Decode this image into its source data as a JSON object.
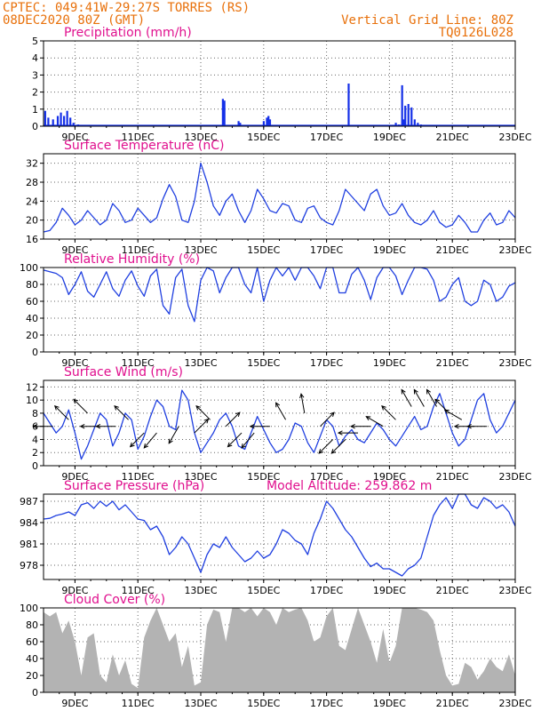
{
  "header": {
    "line1_left": "CPTEC:   049:41W-29:27S  TORRES (RS)",
    "line2_left": "08DEC2020 80Z (GMT)",
    "line1_right": "Vertical Grid Line: 80Z",
    "line2_right": "TQ0126L028"
  },
  "colors": {
    "series": "#1f3fe0",
    "bars": "#1530e8",
    "cloud": "#b3b3b3",
    "title": "#e0108e",
    "header": "#e8700a"
  },
  "x_axis": {
    "ticks": [
      "9DEC",
      "11DEC",
      "13DEC",
      "15DEC",
      "17DEC",
      "19DEC",
      "21DEC",
      "23DEC"
    ],
    "tick_days": [
      9,
      11,
      13,
      15,
      17,
      19,
      21,
      23
    ],
    "range_days": [
      8,
      23
    ]
  },
  "chart_data": [
    {
      "type": "bar",
      "title": "Precipitation (mm/h)",
      "ylim": [
        0,
        5
      ],
      "yticks": [
        "0",
        "1",
        "2",
        "3",
        "4",
        "5"
      ],
      "grid": true,
      "x_days": [
        8.05,
        8.15,
        8.3,
        8.45,
        8.55,
        8.65,
        8.75,
        8.85,
        8.95,
        9.1,
        9.3,
        13.7,
        13.75,
        14.2,
        14.25,
        15.0,
        15.1,
        15.15,
        15.2,
        17.7,
        17.75,
        19.2,
        19.3,
        19.4,
        19.45,
        19.5,
        19.6,
        19.7,
        19.8,
        19.9,
        20.0,
        20.2
      ],
      "values": [
        0.9,
        0.5,
        0.4,
        0.6,
        0.8,
        0.6,
        0.9,
        0.5,
        0.2,
        0.1,
        0.05,
        1.6,
        1.5,
        0.3,
        0.2,
        0.3,
        0.5,
        0.6,
        0.4,
        2.5,
        0.05,
        0.2,
        0.1,
        2.4,
        0.4,
        1.2,
        1.3,
        1.1,
        0.4,
        0.2,
        0.1,
        0.05
      ]
    },
    {
      "type": "line",
      "title": "Surface Temperature (nC)",
      "ylim": [
        16,
        34
      ],
      "yticks": [
        "16",
        "20",
        "24",
        "28",
        "32"
      ],
      "grid": true,
      "x_days": [
        8.0,
        8.2,
        8.4,
        8.6,
        8.8,
        9.0,
        9.2,
        9.4,
        9.6,
        9.8,
        10.0,
        10.2,
        10.4,
        10.6,
        10.8,
        11.0,
        11.2,
        11.4,
        11.6,
        11.8,
        12.0,
        12.2,
        12.4,
        12.6,
        12.8,
        13.0,
        13.2,
        13.4,
        13.6,
        13.8,
        14.0,
        14.2,
        14.4,
        14.6,
        14.8,
        15.0,
        15.2,
        15.4,
        15.6,
        15.8,
        16.0,
        16.2,
        16.4,
        16.6,
        16.8,
        17.0,
        17.2,
        17.4,
        17.6,
        17.8,
        18.0,
        18.2,
        18.4,
        18.6,
        18.8,
        19.0,
        19.2,
        19.4,
        19.6,
        19.8,
        20.0,
        20.2,
        20.4,
        20.6,
        20.8,
        21.0,
        21.2,
        21.4,
        21.6,
        21.8,
        22.0,
        22.2,
        22.4,
        22.6,
        22.8,
        23.0
      ],
      "values": [
        17.5,
        17.8,
        19.5,
        22.5,
        21.0,
        19.0,
        20.0,
        22.0,
        20.5,
        19.0,
        20.0,
        23.5,
        22.0,
        19.5,
        20.0,
        22.5,
        21.0,
        19.5,
        20.5,
        24.5,
        27.5,
        25.0,
        20.0,
        19.5,
        24.0,
        32.0,
        28.0,
        23.0,
        21.0,
        24.0,
        25.5,
        22.0,
        19.5,
        22.0,
        26.5,
        24.5,
        22.0,
        21.5,
        23.5,
        23.0,
        20.0,
        19.5,
        22.5,
        23.0,
        20.5,
        19.5,
        19.0,
        22.0,
        26.5,
        25.0,
        23.5,
        22.0,
        25.5,
        26.5,
        23.0,
        21.0,
        21.5,
        23.5,
        21.0,
        19.5,
        19.0,
        20.0,
        22.0,
        19.5,
        18.5,
        19.0,
        21.0,
        19.5,
        17.5,
        17.5,
        20.0,
        21.5,
        19.0,
        19.5,
        22.0,
        20.5
      ]
    },
    {
      "type": "line",
      "title": "Relative Humidity (%)",
      "ylim": [
        0,
        100
      ],
      "yticks": [
        "0",
        "20",
        "40",
        "60",
        "80",
        "100"
      ],
      "grid": true,
      "x_days": [
        8.0,
        8.2,
        8.4,
        8.6,
        8.8,
        9.0,
        9.2,
        9.4,
        9.6,
        9.8,
        10.0,
        10.2,
        10.4,
        10.6,
        10.8,
        11.0,
        11.2,
        11.4,
        11.6,
        11.8,
        12.0,
        12.2,
        12.4,
        12.6,
        12.8,
        13.0,
        13.2,
        13.4,
        13.6,
        13.8,
        14.0,
        14.2,
        14.4,
        14.6,
        14.8,
        15.0,
        15.2,
        15.4,
        15.6,
        15.8,
        16.0,
        16.2,
        16.4,
        16.6,
        16.8,
        17.0,
        17.2,
        17.4,
        17.6,
        17.8,
        18.0,
        18.2,
        18.4,
        18.6,
        18.8,
        19.0,
        19.2,
        19.4,
        19.6,
        19.8,
        20.0,
        20.2,
        20.4,
        20.6,
        20.8,
        21.0,
        21.2,
        21.4,
        21.6,
        21.8,
        22.0,
        22.2,
        22.4,
        22.6,
        22.8,
        23.0
      ],
      "values": [
        97,
        95,
        93,
        88,
        68,
        80,
        95,
        72,
        65,
        80,
        95,
        75,
        66,
        85,
        96,
        78,
        66,
        90,
        98,
        55,
        45,
        88,
        98,
        55,
        36,
        85,
        100,
        96,
        70,
        88,
        100,
        100,
        80,
        70,
        100,
        60,
        85,
        100,
        90,
        100,
        85,
        100,
        100,
        90,
        75,
        100,
        100,
        70,
        70,
        92,
        100,
        85,
        62,
        88,
        100,
        100,
        90,
        68,
        85,
        100,
        100,
        98,
        85,
        60,
        65,
        80,
        88,
        60,
        55,
        60,
        85,
        80,
        60,
        65,
        78,
        82
      ]
    },
    {
      "type": "line",
      "title": "Surface Wind (m/s)",
      "ylim": [
        0,
        13
      ],
      "yticks": [
        "0",
        "2",
        "4",
        "6",
        "8",
        "10",
        "12"
      ],
      "grid": true,
      "x_days": [
        8.0,
        8.2,
        8.4,
        8.6,
        8.8,
        9.0,
        9.2,
        9.4,
        9.6,
        9.8,
        10.0,
        10.2,
        10.4,
        10.6,
        10.8,
        11.0,
        11.2,
        11.4,
        11.6,
        11.8,
        12.0,
        12.2,
        12.4,
        12.6,
        12.8,
        13.0,
        13.2,
        13.4,
        13.6,
        13.8,
        14.0,
        14.2,
        14.4,
        14.6,
        14.8,
        15.0,
        15.2,
        15.4,
        15.6,
        15.8,
        16.0,
        16.2,
        16.4,
        16.6,
        16.8,
        17.0,
        17.2,
        17.4,
        17.6,
        17.8,
        18.0,
        18.2,
        18.4,
        18.6,
        18.8,
        19.0,
        19.2,
        19.4,
        19.6,
        19.8,
        20.0,
        20.2,
        20.4,
        20.6,
        20.8,
        21.0,
        21.2,
        21.4,
        21.6,
        21.8,
        22.0,
        22.2,
        22.4,
        22.6,
        22.8,
        23.0
      ],
      "values": [
        8,
        6.5,
        5,
        6,
        8.5,
        5,
        1,
        3,
        5.5,
        8,
        7,
        3,
        5,
        8,
        7,
        2.5,
        4.5,
        7.5,
        10,
        9,
        6,
        5.5,
        11.5,
        10,
        5,
        2,
        3.5,
        5,
        7,
        8,
        6,
        3,
        2.5,
        5,
        7.5,
        5.5,
        3.5,
        2,
        2.5,
        4,
        6.5,
        6,
        3.5,
        2,
        4.5,
        7,
        6,
        3,
        4.5,
        5.5,
        4,
        3.5,
        5,
        6.5,
        5.5,
        4,
        3,
        4.5,
        6,
        7.5,
        5.5,
        6,
        9,
        11,
        8,
        5,
        3,
        4,
        7,
        10,
        11,
        7,
        5,
        6,
        8,
        10
      ]
    },
    {
      "type": "line",
      "title": "Surface Pressure (hPa)",
      "annotation": "Model Altitude: 259.862 m",
      "ylim": [
        976,
        988
      ],
      "yticks": [
        "978",
        "981",
        "984",
        "987"
      ],
      "grid": true,
      "x_days": [
        8.0,
        8.2,
        8.4,
        8.6,
        8.8,
        9.0,
        9.2,
        9.4,
        9.6,
        9.8,
        10.0,
        10.2,
        10.4,
        10.6,
        10.8,
        11.0,
        11.2,
        11.4,
        11.6,
        11.8,
        12.0,
        12.2,
        12.4,
        12.6,
        12.8,
        13.0,
        13.2,
        13.4,
        13.6,
        13.8,
        14.0,
        14.2,
        14.4,
        14.6,
        14.8,
        15.0,
        15.2,
        15.4,
        15.6,
        15.8,
        16.0,
        16.2,
        16.4,
        16.6,
        16.8,
        17.0,
        17.2,
        17.4,
        17.6,
        17.8,
        18.0,
        18.2,
        18.4,
        18.6,
        18.8,
        19.0,
        19.2,
        19.4,
        19.6,
        19.8,
        20.0,
        20.2,
        20.4,
        20.6,
        20.8,
        21.0,
        21.2,
        21.4,
        21.6,
        21.8,
        22.0,
        22.2,
        22.4,
        22.6,
        22.8,
        23.0
      ],
      "values": [
        984.5,
        984.6,
        985,
        985.2,
        985.5,
        985,
        986.5,
        986.8,
        986,
        987,
        986.3,
        987,
        985.8,
        986.5,
        985.5,
        984.5,
        984.3,
        983,
        983.5,
        982,
        979.5,
        980.5,
        982,
        981,
        979,
        977,
        979.5,
        981,
        980.5,
        982,
        980.5,
        979.5,
        978.5,
        979,
        980,
        979,
        979.5,
        981,
        983,
        982.5,
        981.5,
        981,
        979.5,
        982.5,
        984.5,
        987,
        986,
        984.5,
        983,
        982,
        980.5,
        979,
        977.8,
        978.3,
        977.5,
        977.5,
        977,
        976.5,
        977.5,
        978,
        979,
        982,
        985,
        986.5,
        987.5,
        986,
        988,
        988,
        986.5,
        986,
        987.5,
        987,
        986,
        986.5,
        985.5,
        983.5
      ]
    },
    {
      "type": "area",
      "title": "Cloud Cover (%)",
      "ylim": [
        0,
        100
      ],
      "yticks": [
        "0",
        "20",
        "40",
        "60",
        "80",
        "100"
      ],
      "grid": true,
      "x_days": [
        8.0,
        8.2,
        8.4,
        8.6,
        8.8,
        9.0,
        9.2,
        9.4,
        9.6,
        9.8,
        10.0,
        10.2,
        10.4,
        10.6,
        10.8,
        11.0,
        11.2,
        11.4,
        11.6,
        11.8,
        12.0,
        12.2,
        12.4,
        12.6,
        12.8,
        13.0,
        13.2,
        13.4,
        13.6,
        13.8,
        14.0,
        14.2,
        14.4,
        14.6,
        14.8,
        15.0,
        15.2,
        15.4,
        15.6,
        15.8,
        16.0,
        16.2,
        16.4,
        16.6,
        16.8,
        17.0,
        17.2,
        17.4,
        17.6,
        17.8,
        18.0,
        18.2,
        18.4,
        18.6,
        18.8,
        19.0,
        19.2,
        19.4,
        19.6,
        19.8,
        20.0,
        20.2,
        20.4,
        20.6,
        20.8,
        21.0,
        21.2,
        21.4,
        21.6,
        21.8,
        22.0,
        22.2,
        22.4,
        22.6,
        22.8,
        23.0
      ],
      "values": [
        95,
        90,
        95,
        70,
        85,
        60,
        20,
        65,
        70,
        20,
        12,
        45,
        20,
        38,
        10,
        5,
        65,
        85,
        100,
        80,
        60,
        70,
        30,
        55,
        8,
        12,
        80,
        98,
        95,
        60,
        100,
        100,
        95,
        100,
        90,
        100,
        95,
        80,
        100,
        95,
        98,
        100,
        85,
        60,
        65,
        90,
        100,
        55,
        50,
        75,
        100,
        80,
        60,
        35,
        75,
        35,
        55,
        100,
        100,
        100,
        98,
        95,
        85,
        50,
        20,
        8,
        10,
        35,
        30,
        15,
        25,
        40,
        30,
        25,
        45,
        20
      ]
    }
  ],
  "wind_arrows": {
    "note_days": [
      8.3,
      8.8,
      9.4,
      9.8,
      10.3,
      10.7,
      11.2,
      11.6,
      12.3,
      12.8,
      13.3,
      13.8,
      14.3,
      14.7,
      15.2,
      15.7,
      16.3,
      16.8,
      17.2,
      17.6,
      18.0,
      18.4,
      18.8,
      19.2,
      19.7,
      20.1,
      20.5,
      20.9,
      21.3,
      21.7,
      22.1
    ],
    "dir_deg": [
      180,
      135,
      135,
      180,
      180,
      135,
      225,
      230,
      240,
      45,
      135,
      45,
      225,
      230,
      180,
      120,
      100,
      45,
      225,
      225,
      180,
      180,
      150,
      135,
      120,
      120,
      120,
      135,
      150,
      180,
      180
    ],
    "speed": [
      6,
      7,
      8,
      6,
      6,
      7,
      5,
      5,
      6,
      5,
      7,
      6,
      5,
      5,
      6,
      7,
      8,
      6,
      4,
      4,
      5,
      6,
      6,
      7,
      9,
      9,
      9,
      8,
      7,
      6,
      6
    ]
  }
}
